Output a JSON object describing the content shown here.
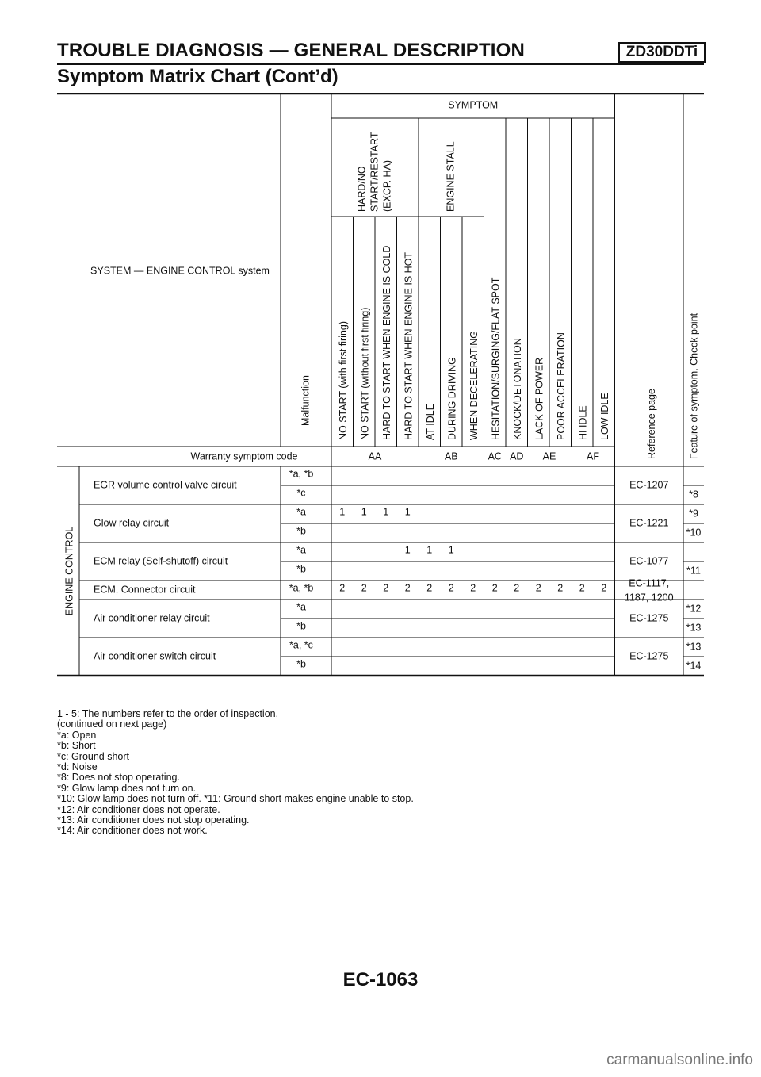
{
  "header": {
    "title": "TROUBLE DIAGNOSIS — GENERAL DESCRIPTION",
    "code": "ZD30DDTi",
    "subtitle": "Symptom Matrix Chart (Cont’d)"
  },
  "table": {
    "system_label": "SYSTEM — ENGINE CONTROL system",
    "malfunction_label": "Malfunction",
    "symptom_label": "SYMPTOM",
    "group_labels": [
      "HARD/NO",
      "START/RESTART",
      "(EXCP. HA)"
    ],
    "engine_stall_label": "ENGINE STALL",
    "symptom_columns": [
      "NO START (with first firing)",
      "NO START (without first firing)",
      "HARD TO START WHEN ENGINE IS COLD",
      "HARD TO START WHEN ENGINE IS HOT",
      "AT IDLE",
      "DURING DRIVING",
      "WHEN DECELERATING",
      "HESITATION/SURGING/FLAT SPOT",
      "KNOCK/DETONATION",
      "LACK OF POWER",
      "POOR ACCELERATION",
      "HI IDLE",
      "LOW IDLE"
    ],
    "reference_label": "Reference page",
    "feature_label": "Feature of symptom, Check point",
    "warranty_label": "Warranty symptom code",
    "warranty_codes": [
      "AA",
      "AB",
      "AC",
      "AD",
      "AE",
      "AF"
    ],
    "category_label": "ENGINE CONTROL",
    "groups": [
      {
        "name": "EGR volume control valve circuit",
        "ref": [
          "EC-1207"
        ],
        "rows": [
          {
            "mode": "*a, *b",
            "values": [
              "",
              "",
              "",
              "",
              "",
              "",
              "",
              "",
              "",
              "",
              "",
              "",
              ""
            ],
            "feature": ""
          },
          {
            "mode": "*c",
            "values": [
              "",
              "",
              "",
              "",
              "",
              "",
              "",
              "",
              "",
              "",
              "",
              "",
              ""
            ],
            "feature": "*8"
          }
        ]
      },
      {
        "name": "Glow relay circuit",
        "ref": [
          "EC-1221"
        ],
        "rows": [
          {
            "mode": "*a",
            "values": [
              "1",
              "1",
              "1",
              "1",
              "",
              "",
              "",
              "",
              "",
              "",
              "",
              "",
              ""
            ],
            "feature": "*9"
          },
          {
            "mode": "*b",
            "values": [
              "",
              "",
              "",
              "",
              "",
              "",
              "",
              "",
              "",
              "",
              "",
              "",
              ""
            ],
            "feature": "*10"
          }
        ]
      },
      {
        "name": "ECM relay (Self-shutoff) circuit",
        "ref": [
          "EC-1077"
        ],
        "rows": [
          {
            "mode": "*a",
            "values": [
              "",
              "",
              "",
              "1",
              "1",
              "1",
              "",
              "",
              "",
              "",
              "",
              "",
              ""
            ],
            "feature": ""
          },
          {
            "mode": "*b",
            "values": [
              "",
              "",
              "",
              "",
              "",
              "",
              "",
              "",
              "",
              "",
              "",
              "",
              ""
            ],
            "feature": "*11"
          }
        ]
      },
      {
        "name": "ECM, Connector circuit",
        "ref": [
          "EC-1117,",
          "1187, 1200"
        ],
        "rows": [
          {
            "mode": "*a, *b",
            "values": [
              "2",
              "2",
              "2",
              "2",
              "2",
              "2",
              "2",
              "2",
              "2",
              "2",
              "2",
              "2",
              "2"
            ],
            "feature": ""
          }
        ]
      },
      {
        "name": "Air conditioner relay circuit",
        "ref": [
          "EC-1275"
        ],
        "rows": [
          {
            "mode": "*a",
            "values": [
              "",
              "",
              "",
              "",
              "",
              "",
              "",
              "",
              "",
              "",
              "",
              "",
              ""
            ],
            "feature": "*12"
          },
          {
            "mode": "*b",
            "values": [
              "",
              "",
              "",
              "",
              "",
              "",
              "",
              "",
              "",
              "",
              "",
              "",
              ""
            ],
            "feature": "*13"
          }
        ]
      },
      {
        "name": "Air conditioner switch circuit",
        "ref": [
          "EC-1275"
        ],
        "rows": [
          {
            "mode": "*a, *c",
            "values": [
              "",
              "",
              "",
              "",
              "",
              "",
              "",
              "",
              "",
              "",
              "",
              "",
              ""
            ],
            "feature": "*13"
          },
          {
            "mode": "*b",
            "values": [
              "",
              "",
              "",
              "",
              "",
              "",
              "",
              "",
              "",
              "",
              "",
              "",
              ""
            ],
            "feature": "*14"
          }
        ]
      }
    ]
  },
  "notes": [
    "1 - 5: The numbers refer to the order of inspection.",
    "(continued on next page)",
    "*a: Open",
    "*b: Short",
    "*c: Ground short",
    "*d: Noise",
    "*8: Does not stop operating.",
    "*9: Glow lamp does not turn on.",
    "*10: Glow lamp does not turn off. *11: Ground short makes engine unable to stop.",
    "*12: Air conditioner does not operate.",
    "*13: Air conditioner does not stop operating.",
    "*14: Air conditioner does not work."
  ],
  "footer": {
    "page_number": "EC-1063",
    "watermark": "carmanualsonline.info"
  }
}
